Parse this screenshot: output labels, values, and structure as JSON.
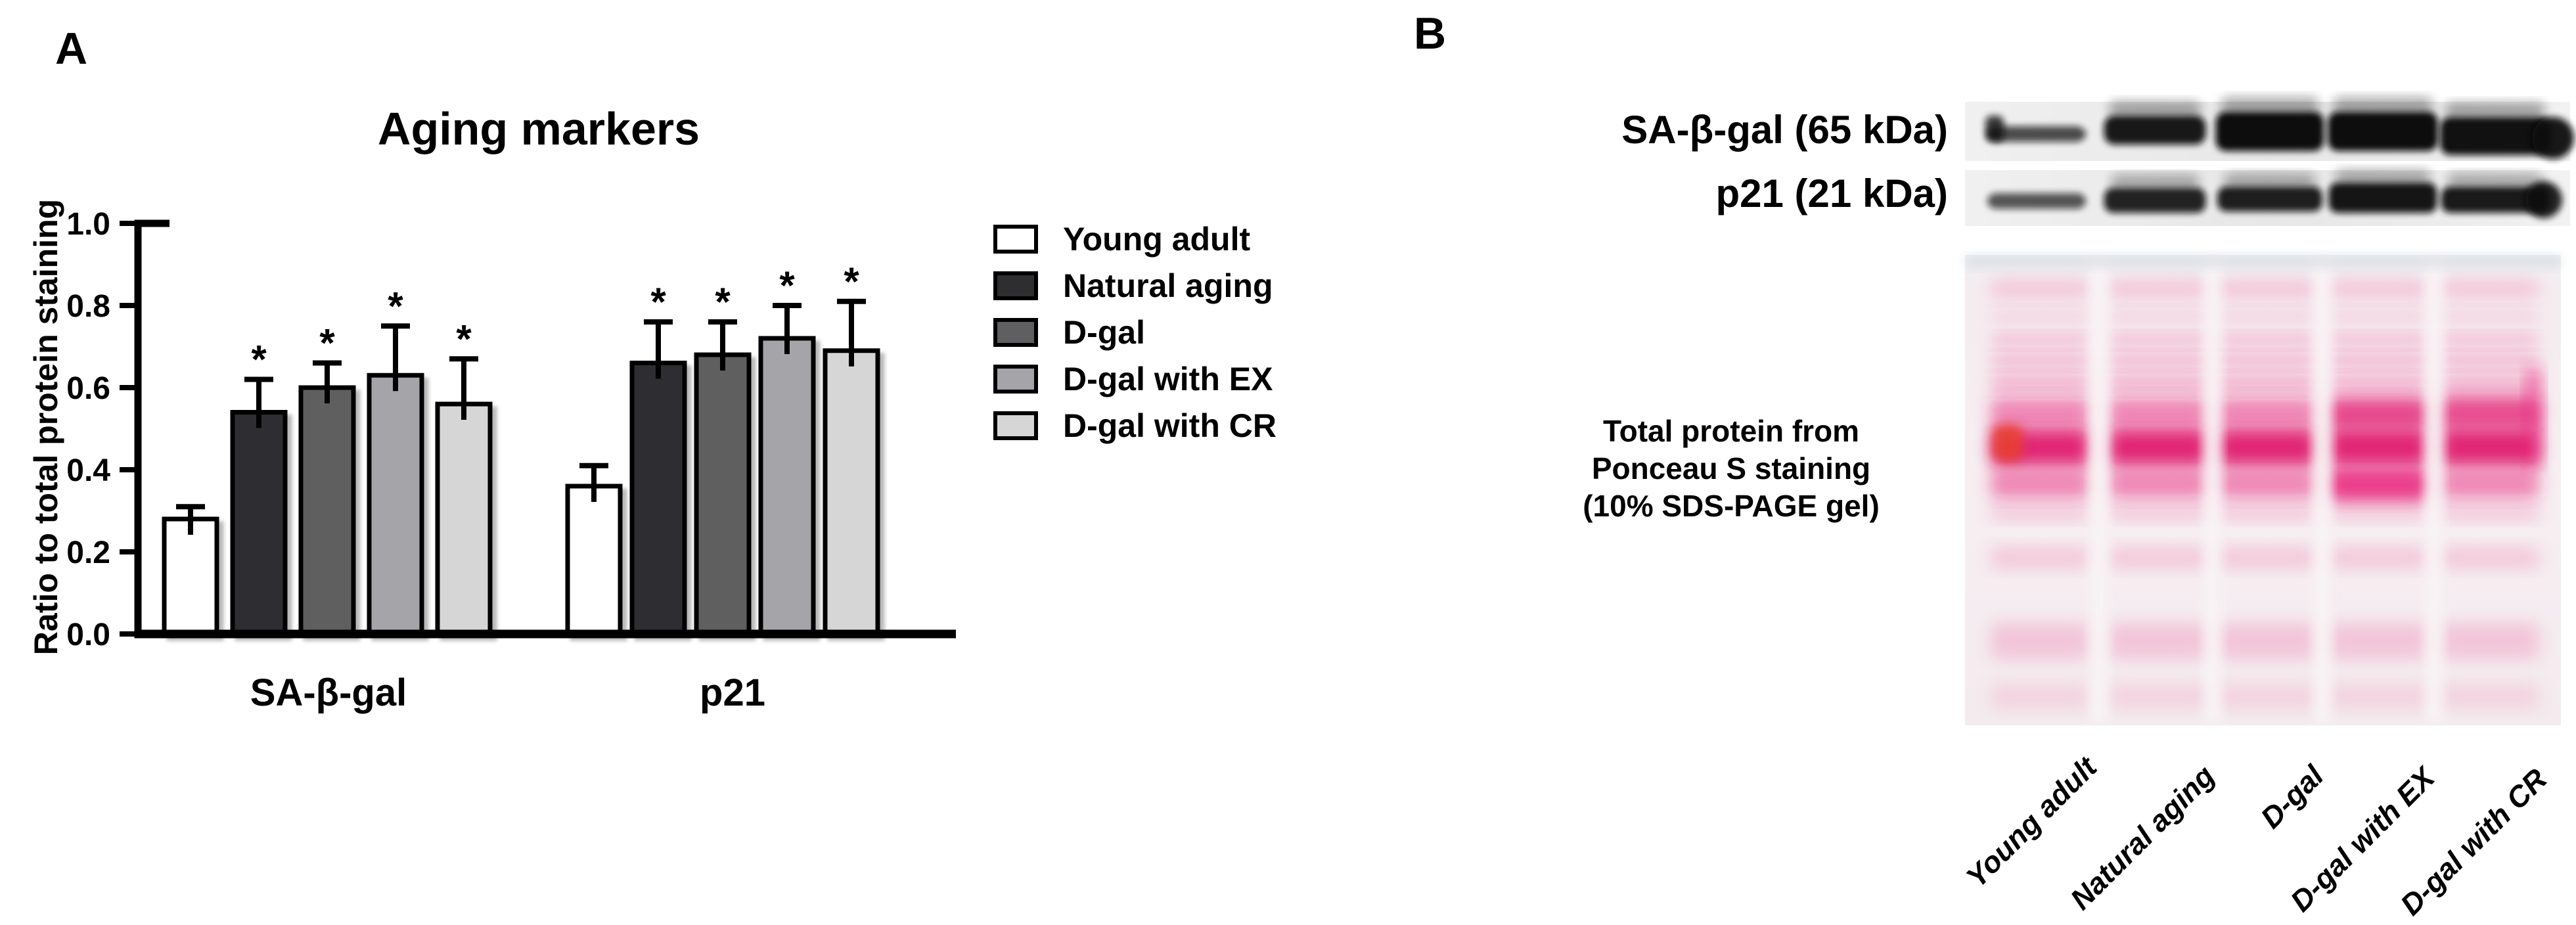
{
  "panel_a": {
    "label": "A"
  },
  "panel_b": {
    "label": "B",
    "blots": [
      {
        "label": "SA-β-gal (65 kDa)"
      },
      {
        "label": "p21 (21 kDa)"
      }
    ],
    "gel_caption": [
      "Total protein from",
      "Ponceau S staining",
      "(10% SDS-PAGE gel)"
    ],
    "lane_labels": [
      "Young adult",
      "Natural aging",
      "D-gal",
      "D-gal with EX",
      "D-gal with CR"
    ]
  },
  "chart_data": {
    "type": "bar",
    "title": "Aging markers",
    "xlabel": "",
    "ylabel": "Ratio to total protein staining",
    "ylim": [
      0.0,
      1.0
    ],
    "yticks": [
      0.0,
      0.2,
      0.4,
      0.6,
      0.8,
      1.0
    ],
    "grid": false,
    "legend_position": "right",
    "significance_marker": "*",
    "groups": [
      "SA-β-gal",
      "p21"
    ],
    "series": [
      {
        "name": "Young adult",
        "color": "#ffffff",
        "values": [
          0.28,
          0.36
        ],
        "sem": [
          0.03,
          0.05
        ],
        "significant": [
          false,
          false
        ]
      },
      {
        "name": "Natural aging",
        "color": "#2e2e30",
        "values": [
          0.54,
          0.66
        ],
        "sem": [
          0.08,
          0.1
        ],
        "significant": [
          true,
          true
        ]
      },
      {
        "name": "D-gal",
        "color": "#5f5f61",
        "values": [
          0.6,
          0.68
        ],
        "sem": [
          0.06,
          0.08
        ],
        "significant": [
          true,
          true
        ]
      },
      {
        "name": "D-gal with EX",
        "color": "#a5a5a9",
        "values": [
          0.63,
          0.72
        ],
        "sem": [
          0.12,
          0.08
        ],
        "significant": [
          true,
          true
        ]
      },
      {
        "name": "D-gal with CR",
        "color": "#d6d6d6",
        "values": [
          0.56,
          0.69
        ],
        "sem": [
          0.11,
          0.12
        ],
        "significant": [
          true,
          true
        ]
      }
    ]
  }
}
